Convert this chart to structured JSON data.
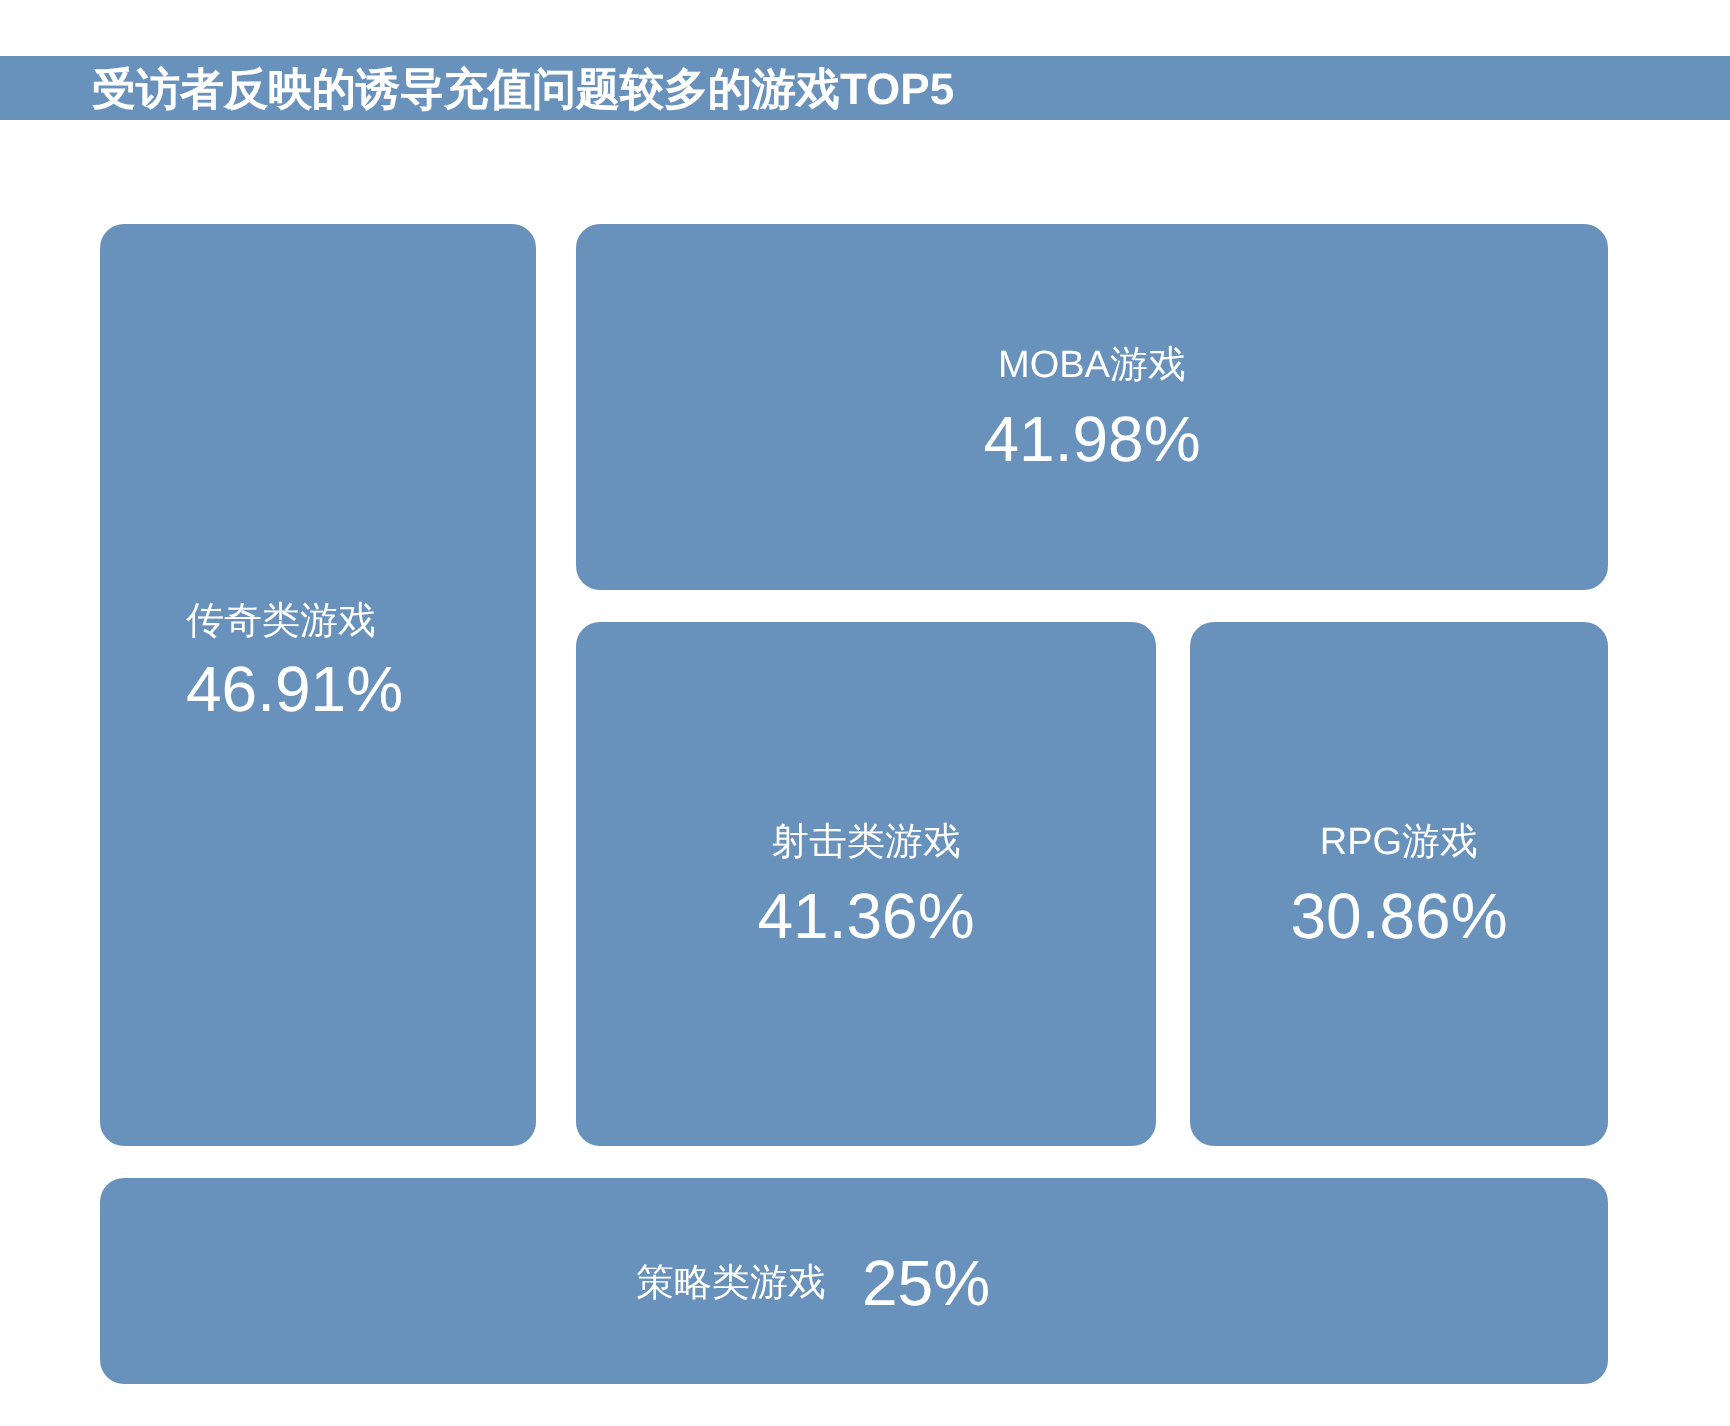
{
  "chart_data": {
    "type": "other",
    "title": "受访者反映的诱导充值问题较多的游戏TOP5",
    "categories": [
      "传奇类游戏",
      "MOBA游戏",
      "射击类游戏",
      "RPG游戏",
      "策略类游戏"
    ],
    "values": [
      46.91,
      41.98,
      41.36,
      30.86,
      25
    ],
    "value_labels": [
      "46.91%",
      "41.98%",
      "41.36%",
      "30.86%",
      "25%"
    ],
    "color": "#6892bb"
  }
}
